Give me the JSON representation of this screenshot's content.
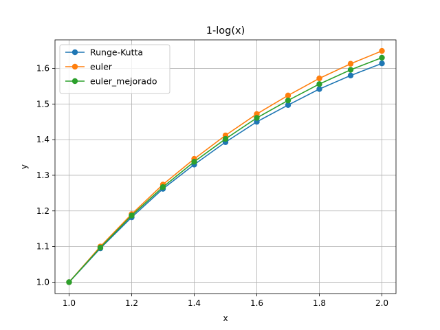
{
  "chart_data": {
    "type": "line",
    "title": "1-log(x)",
    "xlabel": "x",
    "ylabel": "y",
    "xlim": [
      0.955,
      2.045
    ],
    "ylim": [
      0.968,
      1.68
    ],
    "xticks": [
      1.0,
      1.2,
      1.4,
      1.6,
      1.8,
      2.0
    ],
    "xtick_labels": [
      "1.0",
      "1.2",
      "1.4",
      "1.6",
      "1.8",
      "2.0"
    ],
    "yticks": [
      1.0,
      1.1,
      1.2,
      1.3,
      1.4,
      1.5,
      1.6
    ],
    "ytick_labels": [
      "1.0",
      "1.1",
      "1.2",
      "1.3",
      "1.4",
      "1.5",
      "1.6"
    ],
    "grid": true,
    "legend_position": "top-left",
    "x": [
      1.0,
      1.1,
      1.2,
      1.3,
      1.4,
      1.5,
      1.6,
      1.7,
      1.8,
      1.9,
      2.0
    ],
    "series": [
      {
        "name": "Runge-Kutta",
        "color": "#1f77b4",
        "values": [
          1.0,
          1.095,
          1.182,
          1.262,
          1.33,
          1.393,
          1.45,
          1.497,
          1.542,
          1.58,
          1.614
        ]
      },
      {
        "name": "euler",
        "color": "#ff7f0e",
        "values": [
          1.0,
          1.1,
          1.191,
          1.274,
          1.346,
          1.412,
          1.472,
          1.524,
          1.572,
          1.613,
          1.649
        ]
      },
      {
        "name": "euler_mejorado",
        "color": "#2ca02c",
        "values": [
          1.0,
          1.097,
          1.187,
          1.267,
          1.338,
          1.402,
          1.461,
          1.51,
          1.556,
          1.596,
          1.63
        ]
      }
    ]
  }
}
